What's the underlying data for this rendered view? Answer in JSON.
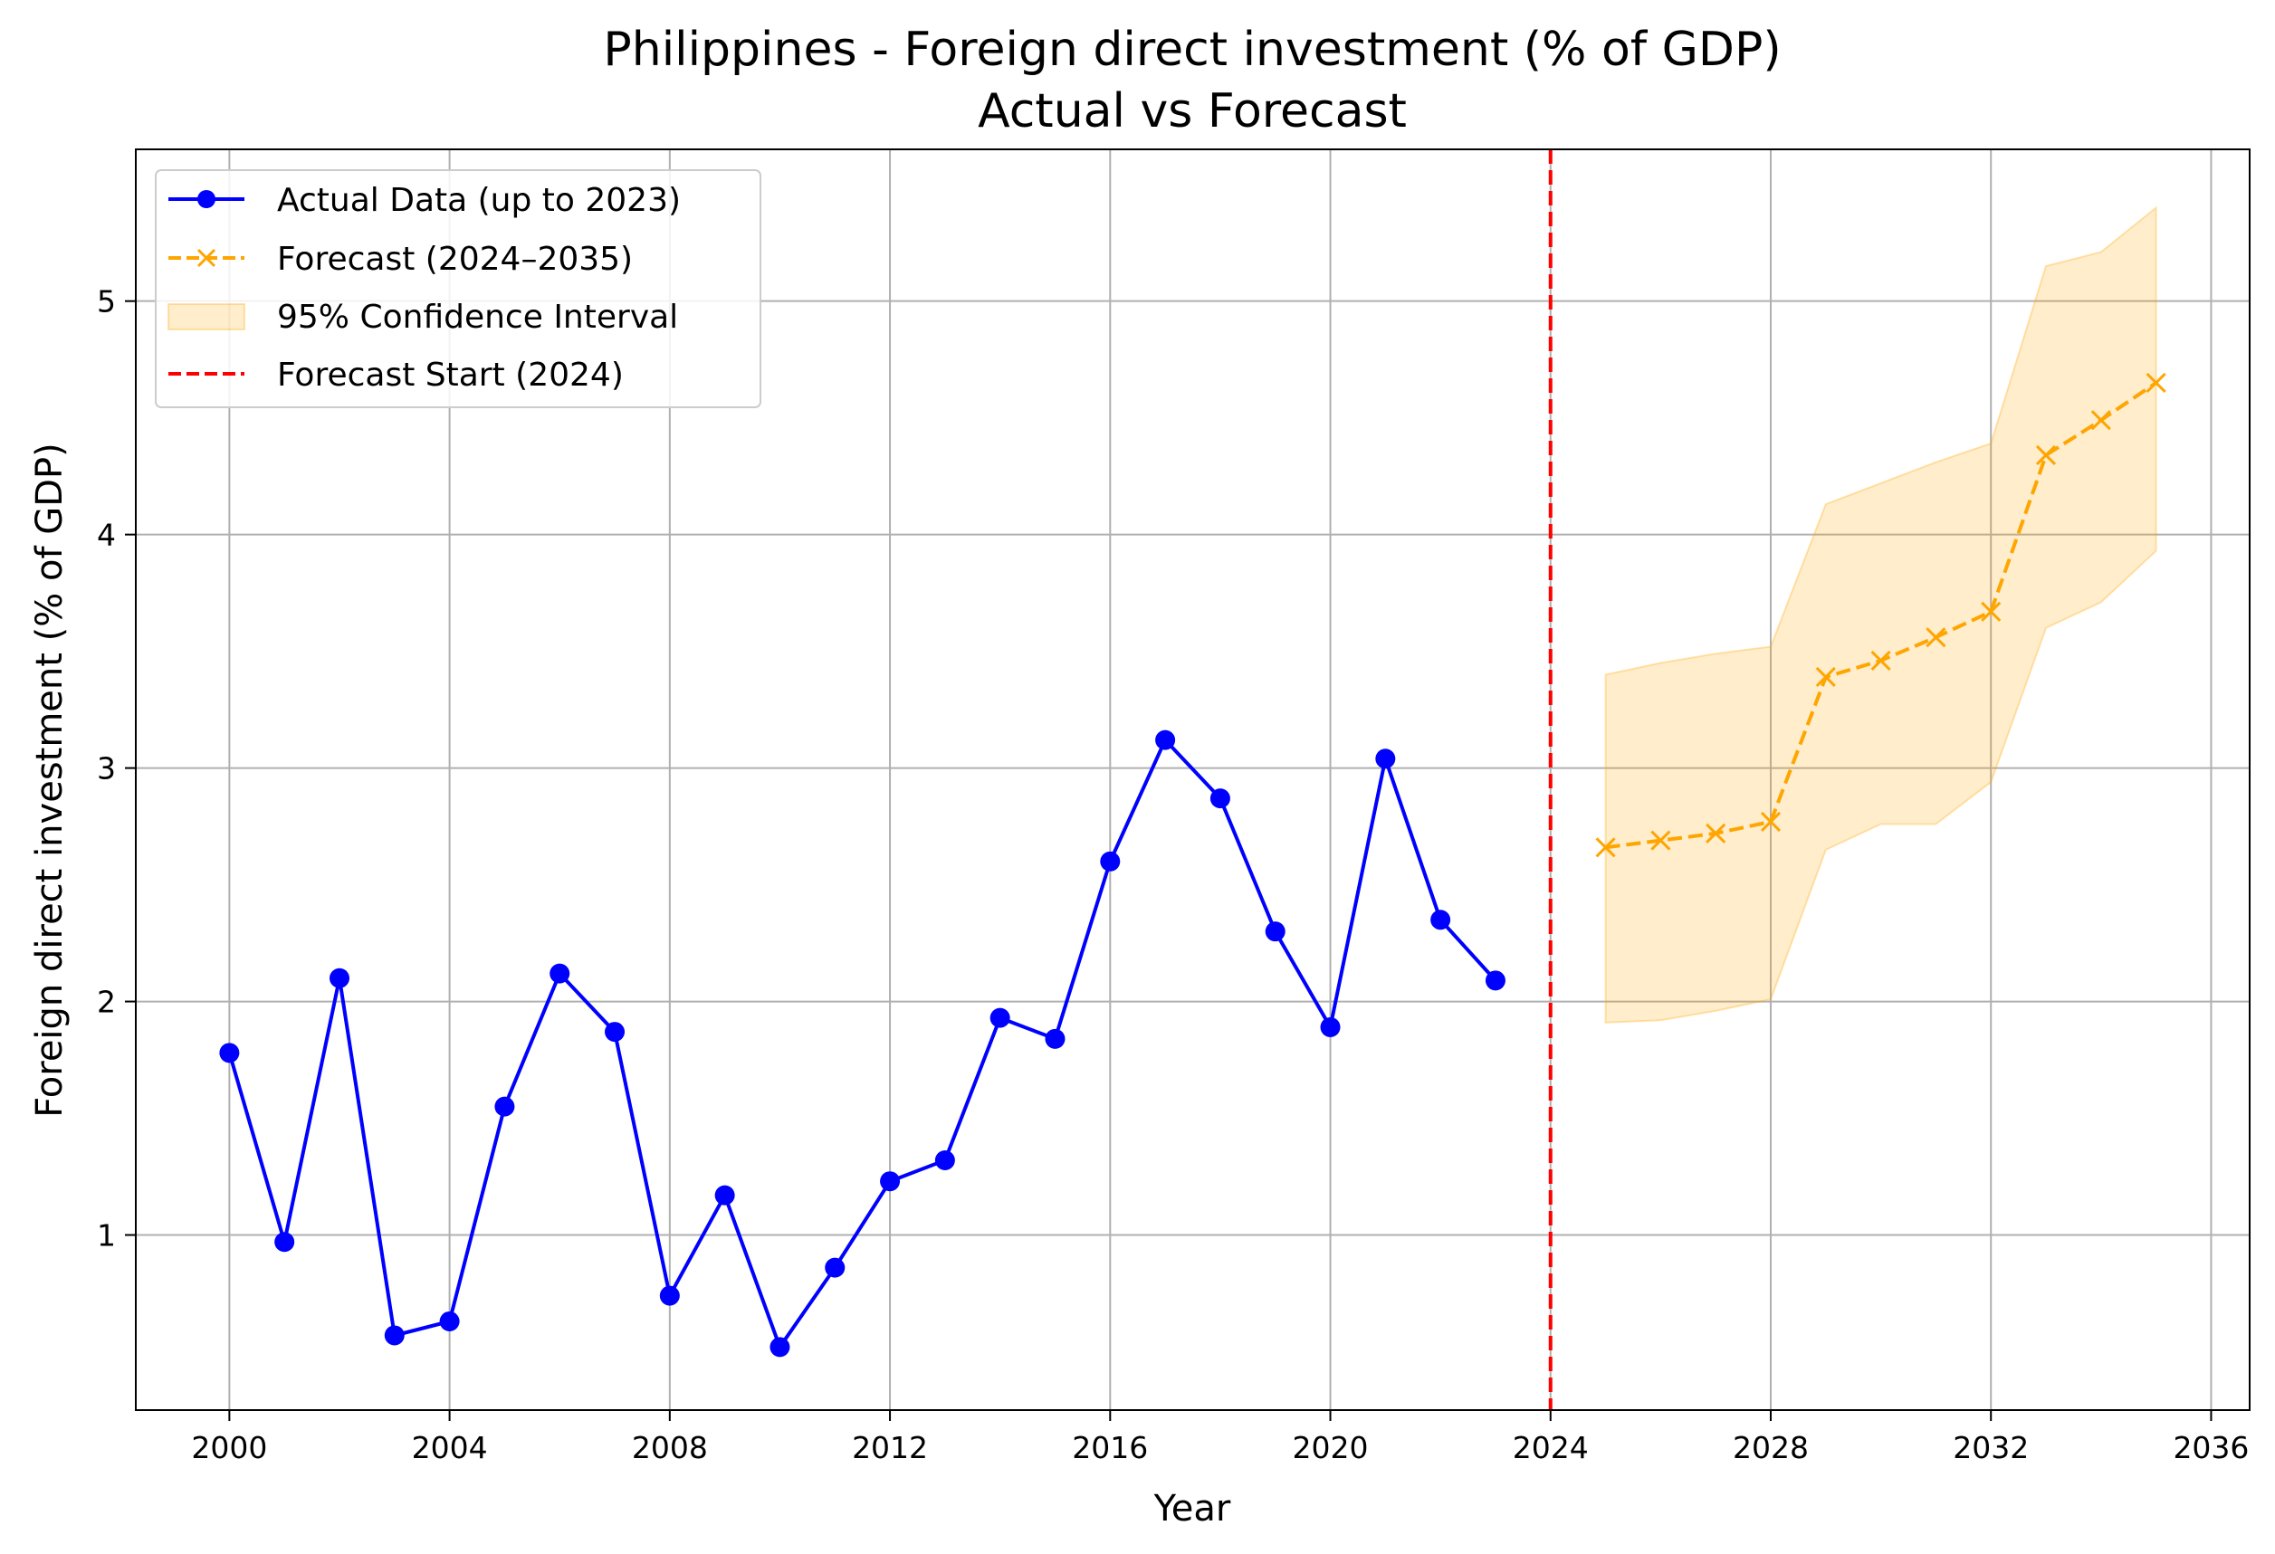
{
  "chart_data": {
    "type": "line",
    "title": "Philippines - Foreign direct investment (% of GDP)",
    "subtitle": "Actual vs Forecast",
    "xlabel": "Year",
    "ylabel": "Foreign direct investment (% of GDP)",
    "xlim": [
      1998.3,
      2036.7
    ],
    "ylim": [
      0.25,
      5.65
    ],
    "xticks": [
      2000,
      2004,
      2008,
      2012,
      2016,
      2020,
      2024,
      2028,
      2032,
      2036
    ],
    "yticks": [
      1,
      2,
      3,
      4,
      5
    ],
    "grid": true,
    "legend_position": "top-left",
    "colors": {
      "actual": "#0000ff",
      "forecast": "#ffa500",
      "ci": "#ffa500",
      "vline": "#ff0000",
      "grid": "#b0b0b0"
    },
    "series": [
      {
        "name": "Actual Data (up to 2023)",
        "style": "solid-circle",
        "x": [
          2000,
          2001,
          2002,
          2003,
          2004,
          2005,
          2006,
          2007,
          2008,
          2009,
          2010,
          2011,
          2012,
          2013,
          2014,
          2015,
          2016,
          2017,
          2018,
          2019,
          2020,
          2021,
          2022,
          2023
        ],
        "values": [
          1.78,
          0.97,
          2.1,
          0.57,
          0.63,
          1.55,
          2.12,
          1.87,
          0.74,
          1.17,
          0.52,
          0.86,
          1.23,
          1.32,
          1.93,
          1.84,
          2.6,
          3.12,
          2.87,
          2.3,
          1.89,
          3.04,
          2.35,
          2.09
        ]
      },
      {
        "name": "Forecast (2024–2035)",
        "style": "dashed-x",
        "x": [
          2025,
          2026,
          2027,
          2028,
          2029,
          2030,
          2031,
          2032,
          2033,
          2034,
          2035
        ],
        "values": [
          2.66,
          2.69,
          2.72,
          2.77,
          3.39,
          3.46,
          3.56,
          3.67,
          4.34,
          4.49,
          4.65
        ]
      }
    ],
    "confidence_interval": {
      "name": "95% Confidence Interval",
      "x": [
        2025,
        2026,
        2027,
        2028,
        2029,
        2030,
        2031,
        2032,
        2033,
        2034,
        2035
      ],
      "lower": [
        1.91,
        1.92,
        1.96,
        2.01,
        2.65,
        2.76,
        2.76,
        2.94,
        3.6,
        3.71,
        3.93
      ],
      "upper": [
        3.4,
        3.45,
        3.49,
        3.52,
        4.13,
        4.22,
        4.31,
        4.39,
        5.15,
        5.21,
        5.4
      ]
    },
    "vline": {
      "name": "Forecast Start (2024)",
      "x": 2024
    }
  }
}
